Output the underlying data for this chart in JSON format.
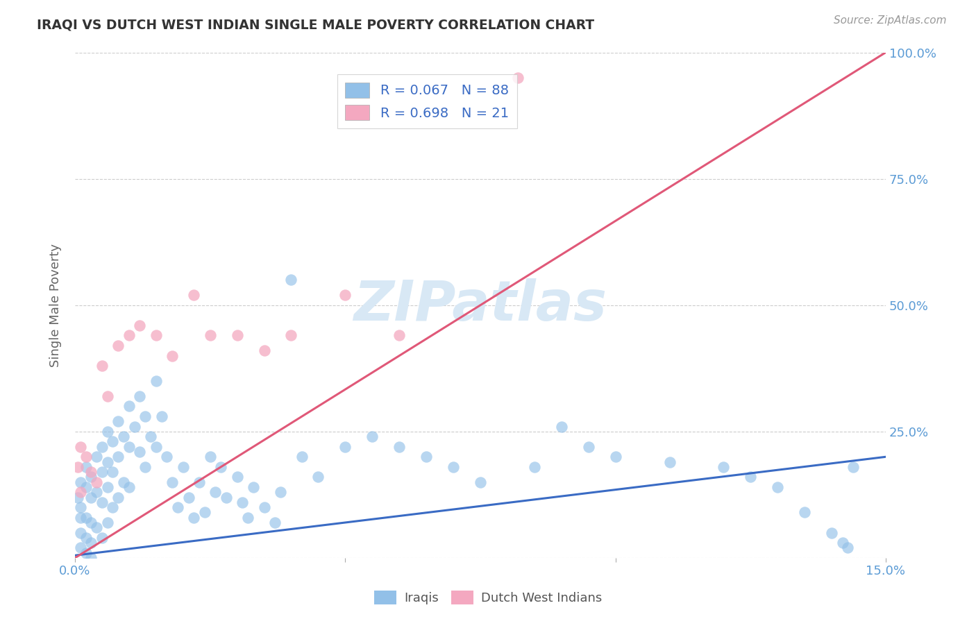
{
  "title": "IRAQI VS DUTCH WEST INDIAN SINGLE MALE POVERTY CORRELATION CHART",
  "source": "Source: ZipAtlas.com",
  "ylabel_label": "Single Male Poverty",
  "x_min": 0.0,
  "x_max": 0.15,
  "y_min": 0.0,
  "y_max": 1.0,
  "iraqi_color": "#92C0E8",
  "dutch_color": "#F4A8C0",
  "iraqi_line_color": "#3A6BC4",
  "dutch_line_color": "#E05878",
  "legend_R_N_color": "#3A6BC4",
  "tick_color": "#5B9BD5",
  "grid_color": "#cccccc",
  "background_color": "#ffffff",
  "title_color": "#333333",
  "watermark_color": "#D8E8F5",
  "iraqi_trend_y0": 0.005,
  "iraqi_trend_y1": 0.2,
  "dutch_trend_y0": 0.0,
  "dutch_trend_y1": 1.0,
  "iraqi_x": [
    0.0005,
    0.001,
    0.001,
    0.001,
    0.001,
    0.001,
    0.002,
    0.002,
    0.002,
    0.002,
    0.002,
    0.003,
    0.003,
    0.003,
    0.003,
    0.003,
    0.004,
    0.004,
    0.004,
    0.005,
    0.005,
    0.005,
    0.005,
    0.006,
    0.006,
    0.006,
    0.006,
    0.007,
    0.007,
    0.007,
    0.008,
    0.008,
    0.008,
    0.009,
    0.009,
    0.01,
    0.01,
    0.01,
    0.011,
    0.012,
    0.012,
    0.013,
    0.013,
    0.014,
    0.015,
    0.015,
    0.016,
    0.017,
    0.018,
    0.019,
    0.02,
    0.021,
    0.022,
    0.023,
    0.024,
    0.025,
    0.026,
    0.027,
    0.028,
    0.03,
    0.031,
    0.032,
    0.033,
    0.035,
    0.037,
    0.038,
    0.04,
    0.042,
    0.045,
    0.05,
    0.055,
    0.06,
    0.065,
    0.07,
    0.075,
    0.085,
    0.09,
    0.095,
    0.1,
    0.11,
    0.12,
    0.125,
    0.13,
    0.135,
    0.14,
    0.142,
    0.143,
    0.144
  ],
  "iraqi_y": [
    0.12,
    0.15,
    0.1,
    0.08,
    0.05,
    0.02,
    0.18,
    0.14,
    0.08,
    0.04,
    0.01,
    0.16,
    0.12,
    0.07,
    0.03,
    0.0,
    0.2,
    0.13,
    0.06,
    0.22,
    0.17,
    0.11,
    0.04,
    0.25,
    0.19,
    0.14,
    0.07,
    0.23,
    0.17,
    0.1,
    0.27,
    0.2,
    0.12,
    0.24,
    0.15,
    0.3,
    0.22,
    0.14,
    0.26,
    0.32,
    0.21,
    0.28,
    0.18,
    0.24,
    0.35,
    0.22,
    0.28,
    0.2,
    0.15,
    0.1,
    0.18,
    0.12,
    0.08,
    0.15,
    0.09,
    0.2,
    0.13,
    0.18,
    0.12,
    0.16,
    0.11,
    0.08,
    0.14,
    0.1,
    0.07,
    0.13,
    0.55,
    0.2,
    0.16,
    0.22,
    0.24,
    0.22,
    0.2,
    0.18,
    0.15,
    0.18,
    0.26,
    0.22,
    0.2,
    0.19,
    0.18,
    0.16,
    0.14,
    0.09,
    0.05,
    0.03,
    0.02,
    0.18
  ],
  "dutch_x": [
    0.0005,
    0.001,
    0.001,
    0.002,
    0.003,
    0.004,
    0.005,
    0.006,
    0.008,
    0.01,
    0.012,
    0.015,
    0.018,
    0.022,
    0.025,
    0.03,
    0.035,
    0.04,
    0.05,
    0.06,
    0.082
  ],
  "dutch_y": [
    0.18,
    0.22,
    0.13,
    0.2,
    0.17,
    0.15,
    0.38,
    0.32,
    0.42,
    0.44,
    0.46,
    0.44,
    0.4,
    0.52,
    0.44,
    0.44,
    0.41,
    0.44,
    0.52,
    0.44,
    0.95
  ]
}
